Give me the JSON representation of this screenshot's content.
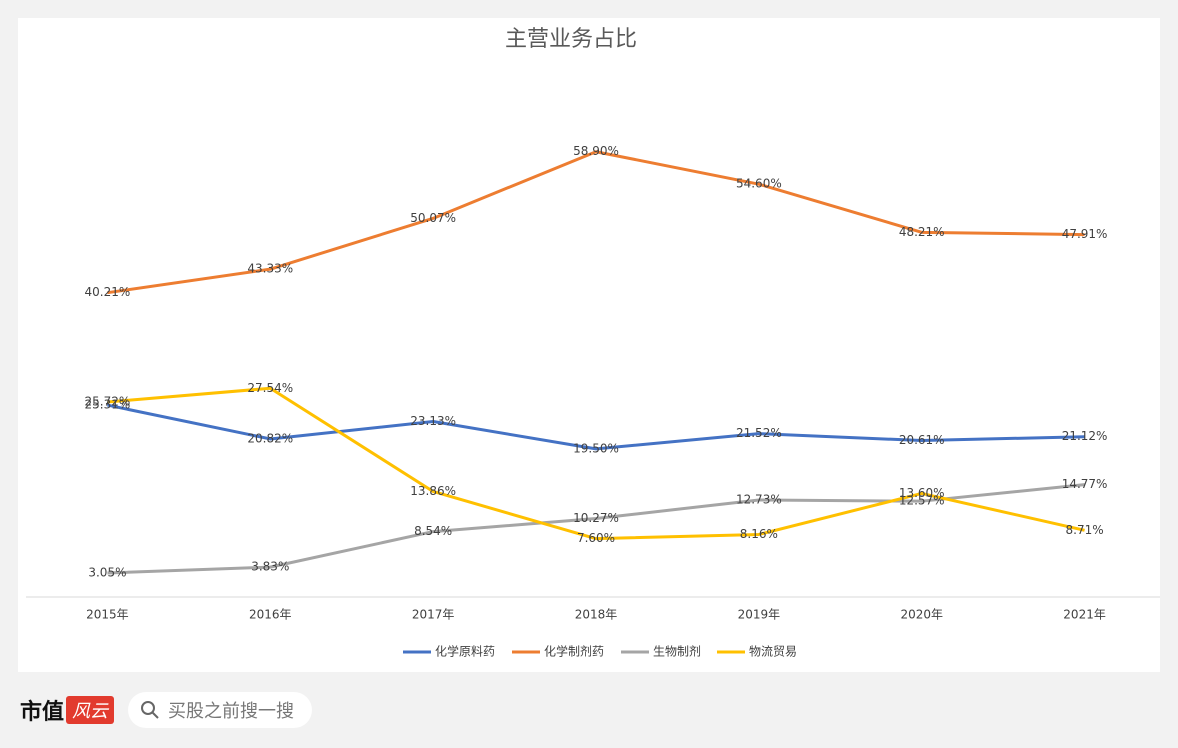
{
  "chart_data": {
    "type": "line",
    "title": "主营业务占比",
    "categories": [
      "2015年",
      "2016年",
      "2017年",
      "2018年",
      "2019年",
      "2020年",
      "2021年"
    ],
    "series": [
      {
        "name": "化学原料药",
        "color": "#4472c4",
        "values": [
          25.31,
          20.82,
          23.13,
          19.5,
          21.52,
          20.61,
          21.12
        ],
        "value_labels": [
          "25.31%",
          "20.82%",
          "23.13%",
          "19.50%",
          "21.52%",
          "20.61%",
          "21.12%"
        ]
      },
      {
        "name": "化学制剂药",
        "color": "#ed7d31",
        "values": [
          40.21,
          43.33,
          50.07,
          58.9,
          54.6,
          48.21,
          47.91
        ],
        "value_labels": [
          "40.21%",
          "43.33%",
          "50.07%",
          "58.90%",
          "54.60%",
          "48.21%",
          "47.91%"
        ]
      },
      {
        "name": "生物制剂",
        "color": "#a5a5a5",
        "values": [
          3.05,
          3.83,
          8.54,
          10.27,
          12.73,
          12.57,
          14.77
        ],
        "value_labels": [
          "3.05%",
          "3.83%",
          "8.54%",
          "10.27%",
          "12.73%",
          "12.57%",
          "14.77%"
        ]
      },
      {
        "name": "物流贸易",
        "color": "#ffc000",
        "values": [
          25.72,
          27.54,
          13.86,
          7.6,
          8.16,
          13.6,
          8.71
        ],
        "value_labels": [
          "25.72%",
          "27.54%",
          "13.86%",
          "7.60%",
          "8.16%",
          "13.60%",
          "8.71%"
        ]
      }
    ],
    "ylim": [
      0,
      70
    ],
    "legend": "bottom"
  },
  "footer": {
    "brand": "市值",
    "brand_mark": "风云",
    "search": "买股之前搜一搜"
  }
}
